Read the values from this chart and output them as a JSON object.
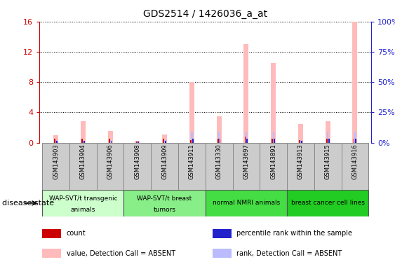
{
  "title": "GDS2514 / 1426036_a_at",
  "samples": [
    "GSM143903",
    "GSM143904",
    "GSM143906",
    "GSM143908",
    "GSM143909",
    "GSM143911",
    "GSM143330",
    "GSM143697",
    "GSM143891",
    "GSM143913",
    "GSM143915",
    "GSM143916"
  ],
  "absent_value_values": [
    1.0,
    2.8,
    1.5,
    0.25,
    1.1,
    8.0,
    3.5,
    13.0,
    10.5,
    2.5,
    2.8,
    16.0
  ],
  "absent_rank_values": [
    0.3,
    0.3,
    0.3,
    0.1,
    0.3,
    1.4,
    1.4,
    1.4,
    1.4,
    0.3,
    1.4,
    1.4
  ],
  "count_values": [
    0.5,
    0.5,
    0.5,
    0.1,
    0.5,
    0.3,
    0.5,
    0.8,
    0.5,
    0.3,
    0.5,
    0.5
  ],
  "rank_values": [
    0.2,
    0.2,
    0.2,
    0.1,
    0.2,
    0.5,
    0.5,
    0.5,
    0.5,
    0.2,
    0.5,
    0.5
  ],
  "ylim_left": [
    0,
    16
  ],
  "ylim_right": [
    0,
    100
  ],
  "yticks_left": [
    0,
    4,
    8,
    12,
    16
  ],
  "yticks_right": [
    0,
    25,
    50,
    75,
    100
  ],
  "color_count": "#cc0000",
  "color_rank": "#2222cc",
  "color_absent_value": "#ffbbbb",
  "color_absent_rank": "#bbbbff",
  "groups": [
    {
      "label": "WAP-SVT/t transgenic\nanimals",
      "start": 0,
      "end": 3,
      "color": "#ccffcc"
    },
    {
      "label": "WAP-SVT/t breast\ntumors",
      "start": 3,
      "end": 6,
      "color": "#88ee88"
    },
    {
      "label": "normal NMRI animals",
      "start": 6,
      "end": 9,
      "color": "#44dd44"
    },
    {
      "label": "breast cancer cell lines",
      "start": 9,
      "end": 12,
      "color": "#22cc22"
    }
  ],
  "disease_state_label": "disease state",
  "legend_items": [
    {
      "color": "#cc0000",
      "label": "count",
      "marker": "s"
    },
    {
      "color": "#2222cc",
      "label": "percentile rank within the sample",
      "marker": "s"
    },
    {
      "color": "#ffbbbb",
      "label": "value, Detection Call = ABSENT",
      "marker": "s"
    },
    {
      "color": "#bbbbff",
      "label": "rank, Detection Call = ABSENT",
      "marker": "s"
    }
  ],
  "background_color": "#ffffff",
  "grid_color": "#000000",
  "ylabel_left_color": "#cc0000",
  "ylabel_right_color": "#2222cc",
  "sample_box_color": "#cccccc",
  "sample_box_edge": "#888888"
}
